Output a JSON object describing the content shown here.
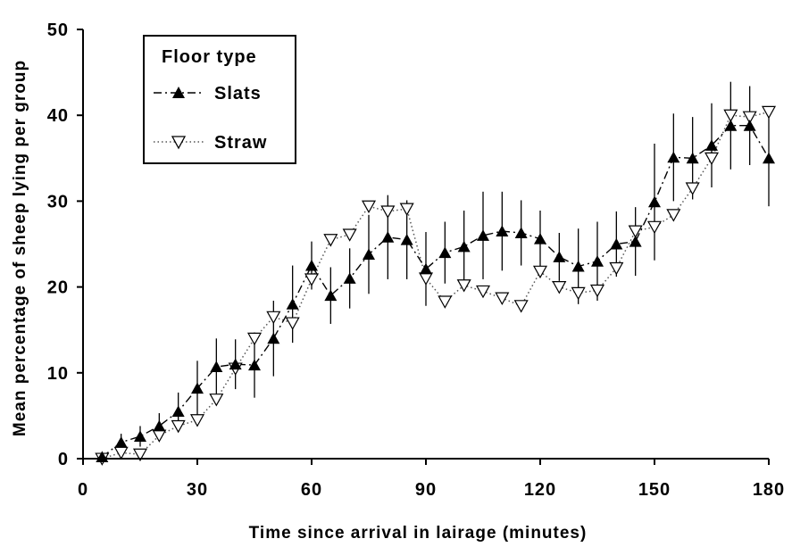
{
  "chart_data": {
    "type": "line",
    "xlabel": "Time since arrival in lairage (minutes)",
    "ylabel": "Mean percentage of sheep lying per group",
    "xlim": [
      0,
      180
    ],
    "ylim": [
      0,
      50
    ],
    "xticks": [
      0,
      30,
      60,
      90,
      120,
      150,
      180
    ],
    "yticks": [
      0,
      10,
      20,
      30,
      40,
      50
    ],
    "grid": false,
    "legend": {
      "title": "Floor type",
      "placement": "top-left"
    },
    "x": [
      5,
      10,
      15,
      20,
      25,
      30,
      35,
      40,
      45,
      50,
      55,
      60,
      65,
      70,
      75,
      80,
      85,
      90,
      95,
      100,
      105,
      110,
      115,
      120,
      125,
      130,
      135,
      140,
      145,
      150,
      155,
      160,
      165,
      170,
      175,
      180
    ],
    "series": [
      {
        "name": "Slats",
        "marker": "filled-triangle-up",
        "line_style": "dash-dot",
        "values": [
          0.2,
          1.9,
          2.6,
          3.8,
          5.5,
          8.2,
          10.7,
          11.0,
          10.9,
          14.0,
          18.0,
          22.5,
          19.0,
          21.0,
          23.8,
          25.8,
          25.5,
          22.1,
          24.0,
          24.7,
          26.0,
          26.5,
          26.3,
          25.6,
          23.5,
          22.4,
          23.0,
          25.0,
          25.3,
          29.9,
          35.1,
          35.0,
          36.5,
          38.8,
          38.8,
          35.0
        ],
        "errors": [
          0.4,
          1.0,
          1.2,
          1.5,
          2.2,
          3.2,
          3.3,
          2.9,
          3.8,
          4.4,
          4.5,
          2.8,
          3.3,
          3.5,
          4.6,
          4.9,
          4.6,
          4.3,
          3.6,
          4.2,
          5.1,
          4.6,
          3.8,
          3.3,
          2.8,
          4.4,
          4.6,
          3.8,
          4.0,
          6.8,
          5.1,
          4.8,
          4.9,
          5.1,
          4.6,
          5.6
        ]
      },
      {
        "name": "Straw",
        "marker": "open-triangle-down",
        "line_style": "dotted",
        "values": [
          0.0,
          0.7,
          0.5,
          2.7,
          3.8,
          4.5,
          6.9,
          10.5,
          14.0,
          16.5,
          15.8,
          20.9,
          25.5,
          26.1,
          29.4,
          28.8,
          29.1,
          21.0,
          18.3,
          20.2,
          19.5,
          18.7,
          17.8,
          21.8,
          20.0,
          19.3,
          19.6,
          22.2,
          26.5,
          27.0,
          28.4,
          31.5,
          35.0,
          40.0,
          39.8,
          40.4
        ]
      }
    ]
  }
}
